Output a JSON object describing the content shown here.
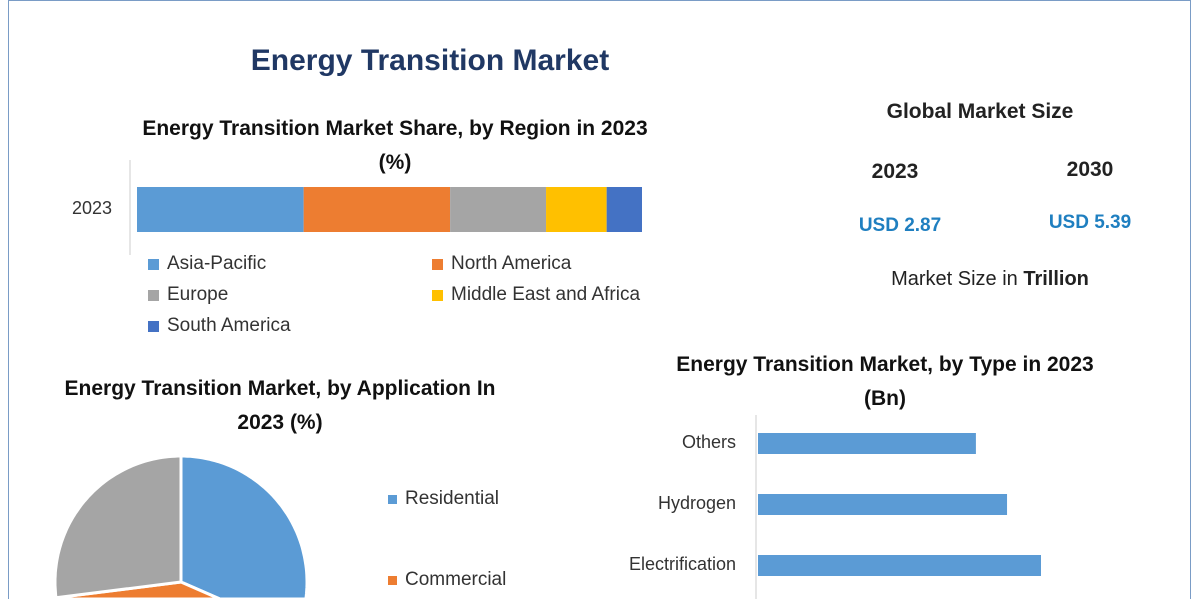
{
  "title": "Energy Transition Market",
  "market_size": {
    "heading": "Global Market Size",
    "years": [
      "2023",
      "2030"
    ],
    "values": [
      "USD 2.87",
      "USD 5.39"
    ],
    "note_prefix": "Market Size in ",
    "note_unit": "Trillion"
  },
  "chart_data": [
    {
      "type": "bar",
      "orientation": "horizontal",
      "stacked": true,
      "title": "Energy Transition Market Share, by Region in 2023 (%)",
      "categories": [
        "2023"
      ],
      "series": [
        {
          "name": "Asia-Pacific",
          "values": [
            33
          ],
          "color": "#5b9bd5"
        },
        {
          "name": "North America",
          "values": [
            29
          ],
          "color": "#ed7d31"
        },
        {
          "name": "Europe",
          "values": [
            19
          ],
          "color": "#a5a5a5"
        },
        {
          "name": "Middle East and Africa",
          "values": [
            12
          ],
          "color": "#ffc000"
        },
        {
          "name": "South America",
          "values": [
            7
          ],
          "color": "#4472c4"
        }
      ],
      "legend": "bottom",
      "grid": false
    },
    {
      "type": "pie",
      "title": "Energy Transition Market, by Application In 2023 (%)",
      "slices": [
        {
          "name": "Residential",
          "value": 45,
          "color": "#5b9bd5"
        },
        {
          "name": "Commercial",
          "value": 28,
          "color": "#ed7d31"
        },
        {
          "value": 27,
          "color": "#a5a5a5"
        }
      ],
      "legend": "right"
    },
    {
      "type": "bar",
      "orientation": "horizontal",
      "title": "Energy Transition Market, by Type in 2023 (Bn)",
      "categories": [
        "Others",
        "Hydrogen",
        "Electrification"
      ],
      "values": [
        0.77,
        0.88,
        1.0
      ],
      "color": "#5b9bd5",
      "grid": false
    }
  ]
}
